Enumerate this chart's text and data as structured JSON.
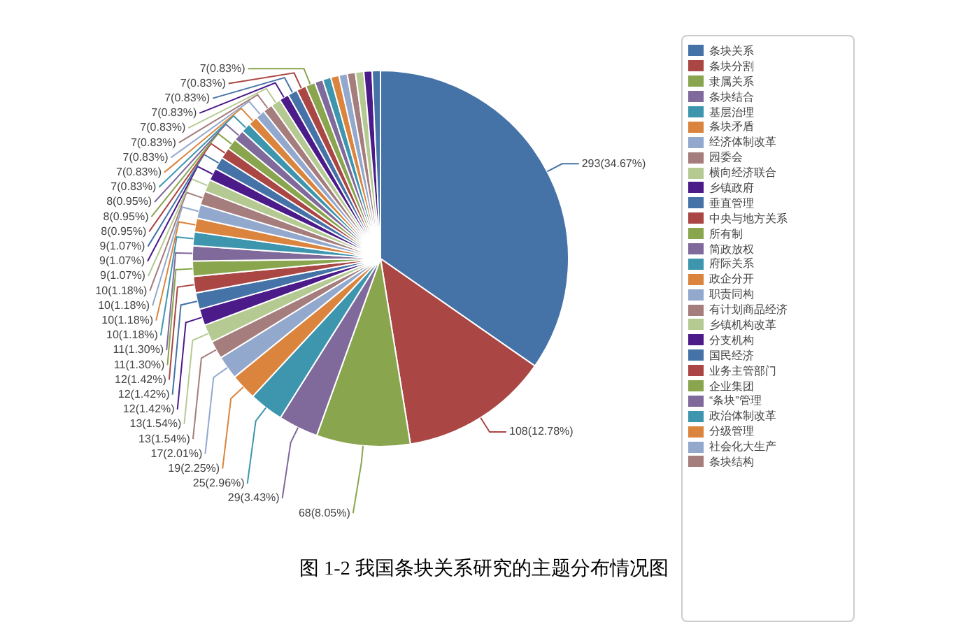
{
  "chart_data": {
    "type": "pie",
    "title": "图 1-2 我国条块关系研究的主题分布情况图",
    "categories": [
      "条块关系",
      "条块分割",
      "隶属关系",
      "条块结合",
      "基层治理",
      "条块矛盾",
      "经济体制改革",
      "园委会",
      "横向经济联合",
      "乡镇政府",
      "垂直管理",
      "中央与地方关系",
      "所有制",
      "简政放权",
      "府际关系",
      "政企分开",
      "职责同构",
      "有计划商品经济",
      "乡镇机构改革",
      "分支机构",
      "国民经济",
      "业务主管部门",
      "企业集团",
      "“条块”管理",
      "政治体制改革",
      "分级管理",
      "社会化大生产",
      "条块结构",
      null,
      null,
      null,
      null,
      null,
      null,
      null,
      null,
      null,
      null,
      null,
      null,
      null
    ],
    "values": [
      293,
      108,
      68,
      29,
      25,
      19,
      17,
      13,
      13,
      12,
      12,
      12,
      11,
      11,
      10,
      10,
      10,
      10,
      9,
      9,
      9,
      8,
      8,
      8,
      7,
      7,
      7,
      7,
      7,
      7,
      7,
      7,
      7,
      6,
      6,
      6,
      6,
      6,
      6,
      6,
      6
    ],
    "value_labels": [
      "293(34.67%)",
      "108(12.78%)",
      "68(8.05%)",
      "29(3.43%)",
      "25(2.96%)",
      "19(2.25%)",
      "17(2.01%)",
      "13(1.54%)",
      "13(1.54%)",
      "12(1.42%)",
      "12(1.42%)",
      "12(1.42%)",
      "11(1.30%)",
      "11(1.30%)",
      "10(1.18%)",
      "10(1.18%)",
      "10(1.18%)",
      "10(1.18%)",
      "9(1.07%)",
      "9(1.07%)",
      "9(1.07%)",
      "8(0.95%)",
      "8(0.95%)",
      "8(0.95%)",
      "7(0.83%)",
      "7(0.83%)",
      "7(0.83%)",
      "7(0.83%)",
      "7(0.83%)",
      "7(0.83%)",
      "7(0.83%)",
      "7(0.83%)",
      "7(0.83%)",
      null,
      null,
      null,
      null,
      null,
      null,
      null,
      null
    ],
    "colors": [
      "#4572a7",
      "#aa4643",
      "#89a54e",
      "#80699b",
      "#3d96ae",
      "#db843d",
      "#92a8cd",
      "#a47d7c",
      "#b5ca92",
      "#4b1b8a",
      "#4572a7",
      "#aa4643",
      "#89a54e",
      "#80699b",
      "#3d96ae",
      "#db843d",
      "#92a8cd",
      "#a47d7c",
      "#b5ca92",
      "#4b1b8a",
      "#4572a7",
      "#aa4643",
      "#89a54e",
      "#80699b",
      "#3d96ae",
      "#db843d",
      "#92a8cd",
      "#a47d7c",
      "#b5ca92",
      "#4b1b8a",
      "#4572a7",
      "#aa4643",
      "#89a54e",
      "#80699b",
      "#3d96ae",
      "#db843d",
      "#92a8cd",
      "#a47d7c",
      "#b5ca92",
      "#4b1b8a",
      "#4572a7"
    ],
    "legend": "right"
  }
}
